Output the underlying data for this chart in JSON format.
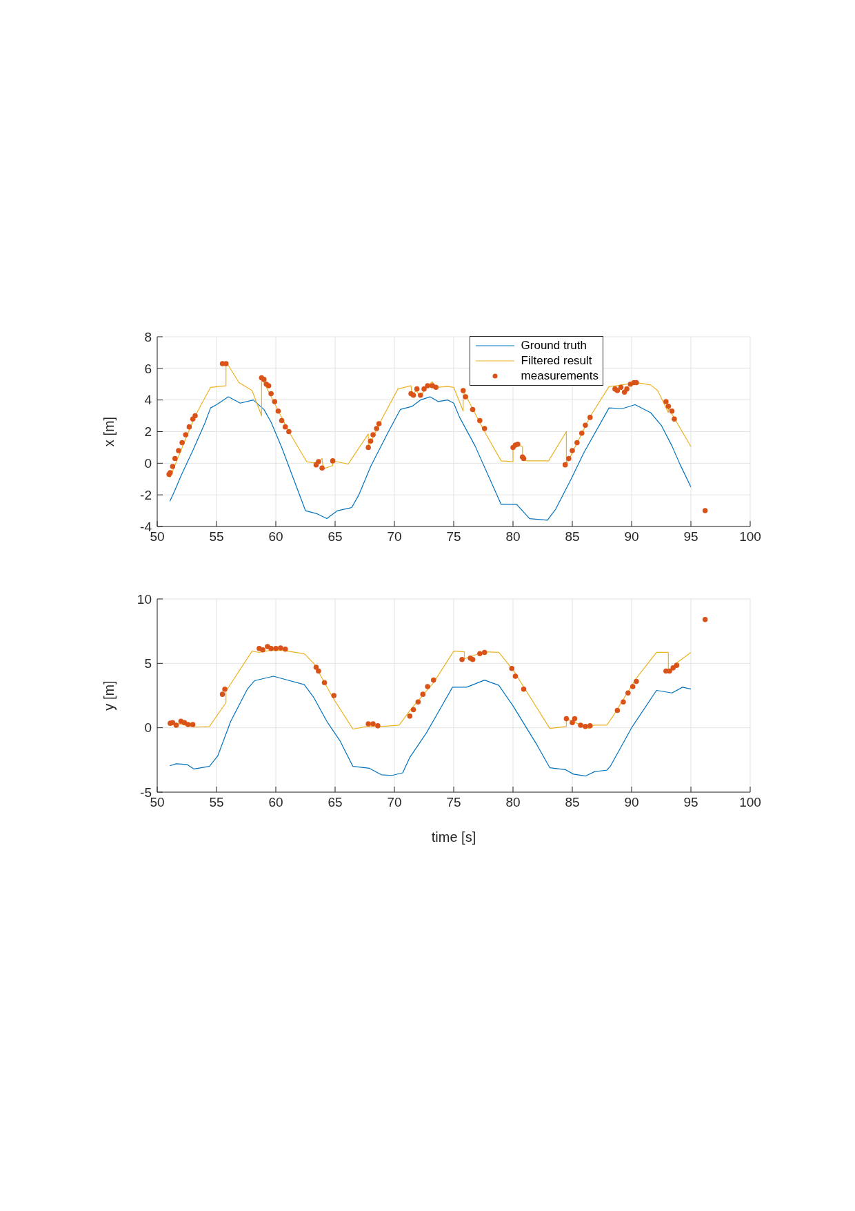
{
  "chart_data": [
    {
      "type": "line",
      "ylabel": "x [m]",
      "xlim": [
        50,
        100
      ],
      "xticks": [
        50,
        55,
        60,
        65,
        70,
        75,
        80,
        85,
        90,
        95,
        100
      ],
      "ylim": [
        -4,
        8
      ],
      "yticks": [
        -4,
        -2,
        0,
        2,
        4,
        6,
        8
      ],
      "grid": true,
      "legend": "top right",
      "series": [
        {
          "name": "Ground truth",
          "color": "#0072bd",
          "marker": "none",
          "x": [
            51.07,
            51.5,
            52,
            53,
            54,
            54.5,
            55,
            56,
            57,
            58.1,
            59,
            59.6,
            60.5,
            61.5,
            62.5,
            63.5,
            64.3,
            65.2,
            66.4,
            67,
            68,
            69.5,
            70.5,
            71.5,
            72.2,
            73,
            73.7,
            74.5,
            75,
            75.5,
            76.8,
            79,
            80.3,
            81.4,
            82.9,
            83.6,
            84.9,
            86,
            88.1,
            89.2,
            90.3,
            91.6,
            92.5,
            93.4,
            94.1,
            95
          ],
          "values": [
            -2.4,
            -1.7,
            -0.8,
            0.8,
            2.5,
            3.5,
            3.7,
            4.2,
            3.8,
            4.0,
            3.4,
            2.6,
            1.0,
            -1.0,
            -3.0,
            -3.2,
            -3.5,
            -3.0,
            -2.8,
            -2.0,
            -0.2,
            2.0,
            3.4,
            3.6,
            4.0,
            4.2,
            3.9,
            4.0,
            3.8,
            2.9,
            1.1,
            -2.6,
            -2.6,
            -3.5,
            -3.6,
            -2.9,
            -1.0,
            0.7,
            3.5,
            3.45,
            3.7,
            3.2,
            2.4,
            1.1,
            -0.1,
            -1.5
          ]
        },
        {
          "name": "Filtered result",
          "color": "#edb120",
          "marker": "none",
          "x": [
            51.07,
            53.2,
            54.5,
            55.8,
            55.8,
            55.9,
            56.9,
            58,
            58.8,
            58.8,
            61.1,
            62.6,
            63.5,
            63.9,
            64,
            64.8,
            64.8,
            66.1,
            67.8,
            67.8,
            68.8,
            70.3,
            71.4,
            71.5,
            71.8,
            72.2,
            72.8,
            73.2,
            73.5,
            74.5,
            75,
            75.8,
            75.8,
            77.6,
            79,
            80,
            80,
            80.3,
            80.8,
            80.8,
            81.2,
            82,
            83,
            84.5,
            84.5,
            86.5,
            88.1,
            88.7,
            90.4,
            91.6,
            92.2,
            93.1,
            93.1,
            95
          ],
          "values": [
            -0.9,
            3.0,
            4.8,
            4.9,
            6.3,
            6.3,
            5.1,
            4.6,
            3.0,
            5.4,
            2.0,
            0.1,
            0.0,
            0.3,
            -0.35,
            -0.15,
            0.15,
            -0.05,
            1.85,
            1.0,
            2.6,
            4.7,
            4.9,
            4.2,
            4.6,
            4.25,
            4.9,
            5.15,
            4.8,
            4.85,
            4.8,
            3.3,
            4.6,
            2.0,
            0.15,
            0.1,
            1.1,
            1.2,
            1.05,
            0.2,
            0.15,
            0.15,
            0.15,
            2.0,
            -0.1,
            2.95,
            4.85,
            4.9,
            5.1,
            4.95,
            4.6,
            3.2,
            3.5,
            1.05
          ]
        },
        {
          "name": "measurements",
          "type": "scatter",
          "color": "#d95319",
          "marker": "circle",
          "x": [
            51,
            51.1,
            51.3,
            51.5,
            51.8,
            52.1,
            52.4,
            52.7,
            53,
            53.2,
            55.5,
            55.8,
            58.8,
            59,
            59.2,
            59.4,
            59.6,
            59.9,
            60.2,
            60.5,
            60.8,
            61.1,
            63.4,
            63.6,
            63.9,
            64.8,
            67.8,
            68,
            68.2,
            68.5,
            68.7,
            71.4,
            71.6,
            71.9,
            72.2,
            72.5,
            72.8,
            73.2,
            73.5,
            75.8,
            76,
            76.6,
            77.2,
            77.6,
            80,
            80.2,
            80.4,
            80.8,
            80.9,
            84.4,
            84.7,
            85,
            85.4,
            85.8,
            86.1,
            86.5,
            88.6,
            88.8,
            89.1,
            89.4,
            89.6,
            89.9,
            90.2,
            90.4,
            92.9,
            93.1,
            93.4,
            93.6,
            96.2
          ],
          "values": [
            -0.7,
            -0.6,
            -0.2,
            0.3,
            0.8,
            1.3,
            1.8,
            2.3,
            2.8,
            3.0,
            6.3,
            6.3,
            5.4,
            5.3,
            5.0,
            4.9,
            4.4,
            3.9,
            3.3,
            2.7,
            2.3,
            2.0,
            -0.1,
            0.1,
            -0.3,
            0.15,
            1.0,
            1.4,
            1.8,
            2.2,
            2.5,
            4.4,
            4.3,
            4.7,
            4.3,
            4.7,
            4.9,
            4.9,
            4.8,
            4.6,
            4.2,
            3.4,
            2.7,
            2.2,
            1.0,
            1.15,
            1.2,
            0.4,
            0.3,
            -0.1,
            0.3,
            0.8,
            1.3,
            1.9,
            2.4,
            2.9,
            4.7,
            4.6,
            4.8,
            4.5,
            4.7,
            5.0,
            5.1,
            5.1,
            3.9,
            3.6,
            3.3,
            2.8,
            -3.0
          ]
        }
      ]
    },
    {
      "type": "line",
      "xlabel": "time [s]",
      "ylabel": "y [m]",
      "xlim": [
        50,
        100
      ],
      "xticks": [
        50,
        55,
        60,
        65,
        70,
        75,
        80,
        85,
        90,
        95,
        100
      ],
      "ylim": [
        -5,
        10
      ],
      "yticks": [
        -5,
        0,
        5,
        10
      ],
      "grid": true,
      "series": [
        {
          "color": "#0072bd",
          "marker": "none",
          "x": [
            51.07,
            51.6,
            52.5,
            53.1,
            54.4,
            55.1,
            56.2,
            57.6,
            58.2,
            59.8,
            60.6,
            62.4,
            63.2,
            64.3,
            65.4,
            66.5,
            67.9,
            68.9,
            69.8,
            70.7,
            71.3,
            72.7,
            74,
            74.9,
            76.1,
            77.6,
            78.8,
            80,
            82,
            83.1,
            84.4,
            85.1,
            86.1,
            86.9,
            87.9,
            88.2,
            90,
            92.1,
            93.4,
            94.3,
            95
          ],
          "values": [
            -2.95,
            -2.8,
            -2.85,
            -3.2,
            -3.0,
            -2.2,
            0.5,
            3.0,
            3.65,
            4.0,
            3.8,
            3.35,
            2.35,
            0.5,
            -1.0,
            -3.0,
            -3.15,
            -3.65,
            -3.7,
            -3.5,
            -2.3,
            -0.4,
            1.7,
            3.15,
            3.15,
            3.7,
            3.3,
            1.7,
            -1.3,
            -3.1,
            -3.25,
            -3.6,
            -3.75,
            -3.4,
            -3.3,
            -3.0,
            0.0,
            2.9,
            2.7,
            3.15,
            3.0
          ]
        },
        {
          "color": "#edb120",
          "marker": "none",
          "x": [
            51.07,
            51.6,
            53.1,
            54.4,
            55.8,
            55.8,
            58,
            58.6,
            59.5,
            60.6,
            62.4,
            63.2,
            64.8,
            66.5,
            67.7,
            68.9,
            70.4,
            71.4,
            73.3,
            75,
            75.9,
            75.9,
            77.6,
            78.8,
            80,
            83.1,
            84.5,
            84.5,
            86.4,
            86.8,
            87.9,
            88.4,
            90.4,
            92.1,
            93.1,
            93.1,
            93.4,
            93.9,
            95
          ],
          "values": [
            0.2,
            0.35,
            0.05,
            0.1,
            1.95,
            2.85,
            5.95,
            5.85,
            6.0,
            6.0,
            5.75,
            5.0,
            2.35,
            -0.1,
            0.1,
            0.1,
            0.2,
            1.45,
            3.5,
            5.95,
            5.9,
            5.35,
            5.9,
            5.85,
            4.5,
            -0.05,
            0.1,
            0.7,
            -0.05,
            0.2,
            0.2,
            0.85,
            3.85,
            5.85,
            5.85,
            4.4,
            4.45,
            5.1,
            5.85
          ]
        },
        {
          "type": "scatter",
          "color": "#d95319",
          "marker": "circle",
          "x": [
            51.1,
            51.3,
            51.6,
            52,
            52.3,
            52.6,
            53,
            55.5,
            55.7,
            58.6,
            58.9,
            59.3,
            59.6,
            60,
            60.4,
            60.8,
            63.4,
            63.6,
            64.1,
            64.9,
            67.8,
            68.2,
            68.6,
            71.3,
            71.6,
            72,
            72.4,
            72.8,
            73.3,
            75.7,
            76.4,
            76.6,
            77.2,
            77.6,
            79.9,
            80.2,
            80.9,
            84.5,
            85,
            85.2,
            85.7,
            86.1,
            86.5,
            88.8,
            89.3,
            89.7,
            90.1,
            90.4,
            92.9,
            93.2,
            93.5,
            93.8,
            96.2
          ],
          "values": [
            0.35,
            0.4,
            0.2,
            0.5,
            0.4,
            0.25,
            0.25,
            2.6,
            3.0,
            6.15,
            6.05,
            6.3,
            6.15,
            6.15,
            6.2,
            6.1,
            4.7,
            4.4,
            3.5,
            2.5,
            0.3,
            0.3,
            0.15,
            0.9,
            1.4,
            2.0,
            2.6,
            3.2,
            3.7,
            5.3,
            5.4,
            5.3,
            5.75,
            5.85,
            4.6,
            4.0,
            3.0,
            0.7,
            0.4,
            0.7,
            0.2,
            0.1,
            0.15,
            1.35,
            2.0,
            2.7,
            3.2,
            3.6,
            4.4,
            4.4,
            4.65,
            4.85,
            8.4
          ]
        }
      ]
    }
  ]
}
